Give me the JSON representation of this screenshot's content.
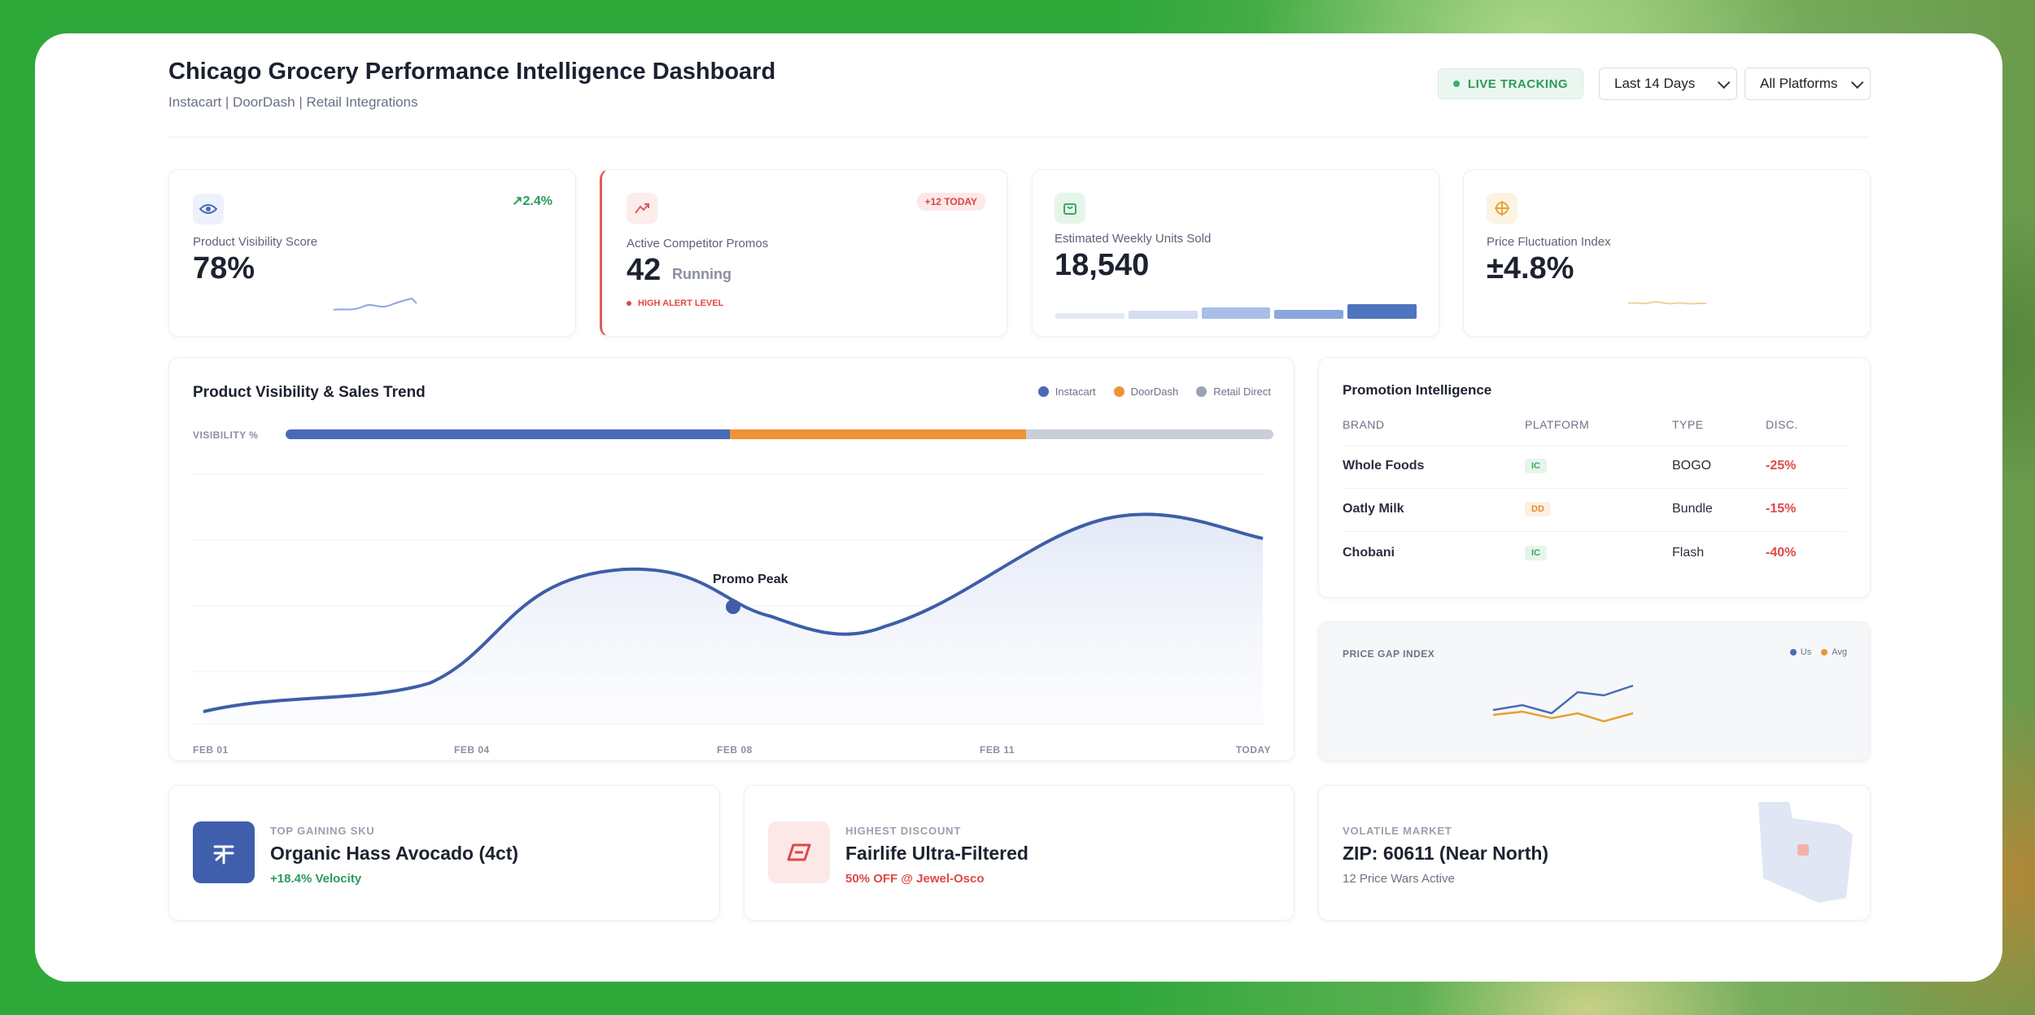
{
  "header": {
    "title": "Chicago Grocery Performance Intelligence Dashboard",
    "subtitle": "Instacart | DoorDash | Retail Integrations",
    "live_label": "LIVE TRACKING",
    "date_range": "Last 14 Days",
    "platform_filter": "All Platforms"
  },
  "kpis": [
    {
      "label": "Product Visibility Score",
      "value": "78%",
      "change": "↗2.4%",
      "icon": "eye-icon"
    },
    {
      "label": "Active Competitor Promos",
      "value": "42",
      "suffix": "Running",
      "badge": "+12 TODAY",
      "alert": "HIGH ALERT LEVEL",
      "icon": "trend-icon"
    },
    {
      "label": "Estimated Weekly Units Sold",
      "value": "18,540",
      "icon": "bag-icon",
      "bars": [
        0.35,
        0.5,
        0.75,
        0.6,
        0.95
      ]
    },
    {
      "label": "Price Fluctuation Index",
      "value": "±4.8%",
      "icon": "target-icon"
    }
  ],
  "trend": {
    "title": "Product Visibility & Sales Trend",
    "legend": [
      "Instacart",
      "DoorDash",
      "Retail Direct"
    ],
    "visibility_label": "VISIBILITY %",
    "visibility_split": [
      45,
      30,
      25
    ],
    "annotation": "Promo Peak",
    "x_labels": [
      "FEB 01",
      "FEB 04",
      "FEB 08",
      "FEB 11",
      "TODAY"
    ],
    "colors": {
      "instacart": "#4a6ab8",
      "doordash": "#ee9338",
      "retail": "#c9ced9"
    }
  },
  "promotions": {
    "title": "Promotion Intelligence",
    "columns": [
      "BRAND",
      "PLATFORM",
      "TYPE",
      "DISC."
    ],
    "rows": [
      {
        "brand": "Whole Foods",
        "platform": "IC",
        "type": "BOGO",
        "disc": "-25%"
      },
      {
        "brand": "Oatly Milk",
        "platform": "DD",
        "type": "Bundle",
        "disc": "-15%"
      },
      {
        "brand": "Chobani",
        "platform": "IC",
        "type": "Flash",
        "disc": "-40%"
      }
    ]
  },
  "price_gap": {
    "title": "PRICE GAP INDEX",
    "legend": [
      "Us",
      "Avg"
    ]
  },
  "highlights": [
    {
      "kicker": "TOP GAINING SKU",
      "title": "Organic Hass Avocado (4ct)",
      "sub": "+18.4% Velocity",
      "icon": "avocado-icon"
    },
    {
      "kicker": "HIGHEST DISCOUNT",
      "title": "Fairlife Ultra-Filtered",
      "sub": "50% OFF @ Jewel-Osco",
      "icon": "tag-icon"
    },
    {
      "kicker": "VOLATILE MARKET",
      "title": "ZIP: 60611 (Near North)",
      "sub": "12 Price Wars Active",
      "icon": "map-icon"
    }
  ]
}
